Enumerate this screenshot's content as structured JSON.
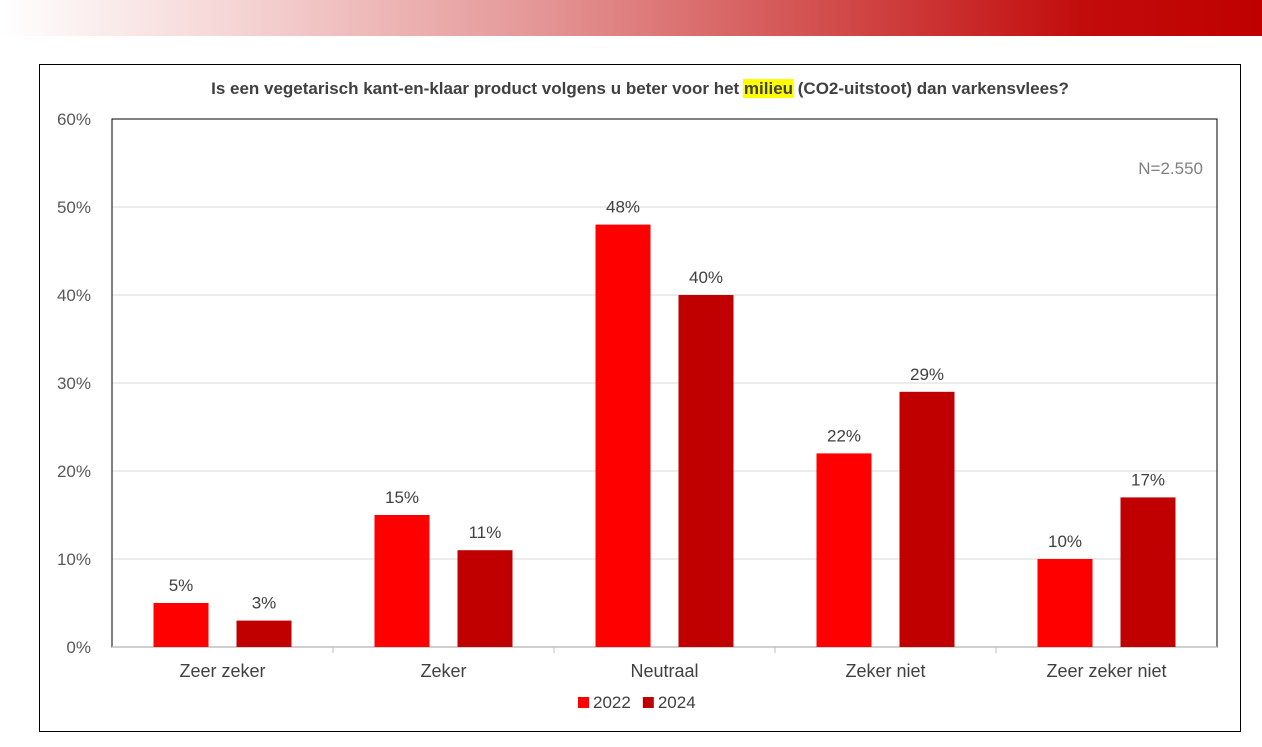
{
  "chart_data": {
    "type": "bar",
    "title": {
      "before": "Is een vegetarisch kant-en-klaar product volgens u beter voor het ",
      "highlight": "milieu",
      "after": " (CO2-uitstoot) dan varkensvlees?"
    },
    "annotation": "N=2.550",
    "categories": [
      "Zeer zeker",
      "Zeker",
      "Neutraal",
      "Zeker niet",
      "Zeer zeker niet"
    ],
    "series": [
      {
        "name": "2022",
        "values": [
          5,
          15,
          48,
          22,
          10
        ],
        "labels": [
          "5%",
          "15%",
          "48%",
          "22%",
          "10%"
        ],
        "color": "#ff0000"
      },
      {
        "name": "2024",
        "values": [
          3,
          11,
          40,
          29,
          17
        ],
        "labels": [
          "3%",
          "11%",
          "40%",
          "29%",
          "17%"
        ],
        "color": "#c00000"
      }
    ],
    "ylim": [
      0,
      60
    ],
    "yticks": [
      0,
      10,
      20,
      30,
      40,
      50,
      60
    ],
    "ytick_labels": [
      "0%",
      "10%",
      "20%",
      "30%",
      "40%",
      "50%",
      "60%"
    ],
    "grid": true,
    "legend_position": "bottom",
    "highlight_color": "#ffff00",
    "grid_color": "#d9d9d9"
  }
}
